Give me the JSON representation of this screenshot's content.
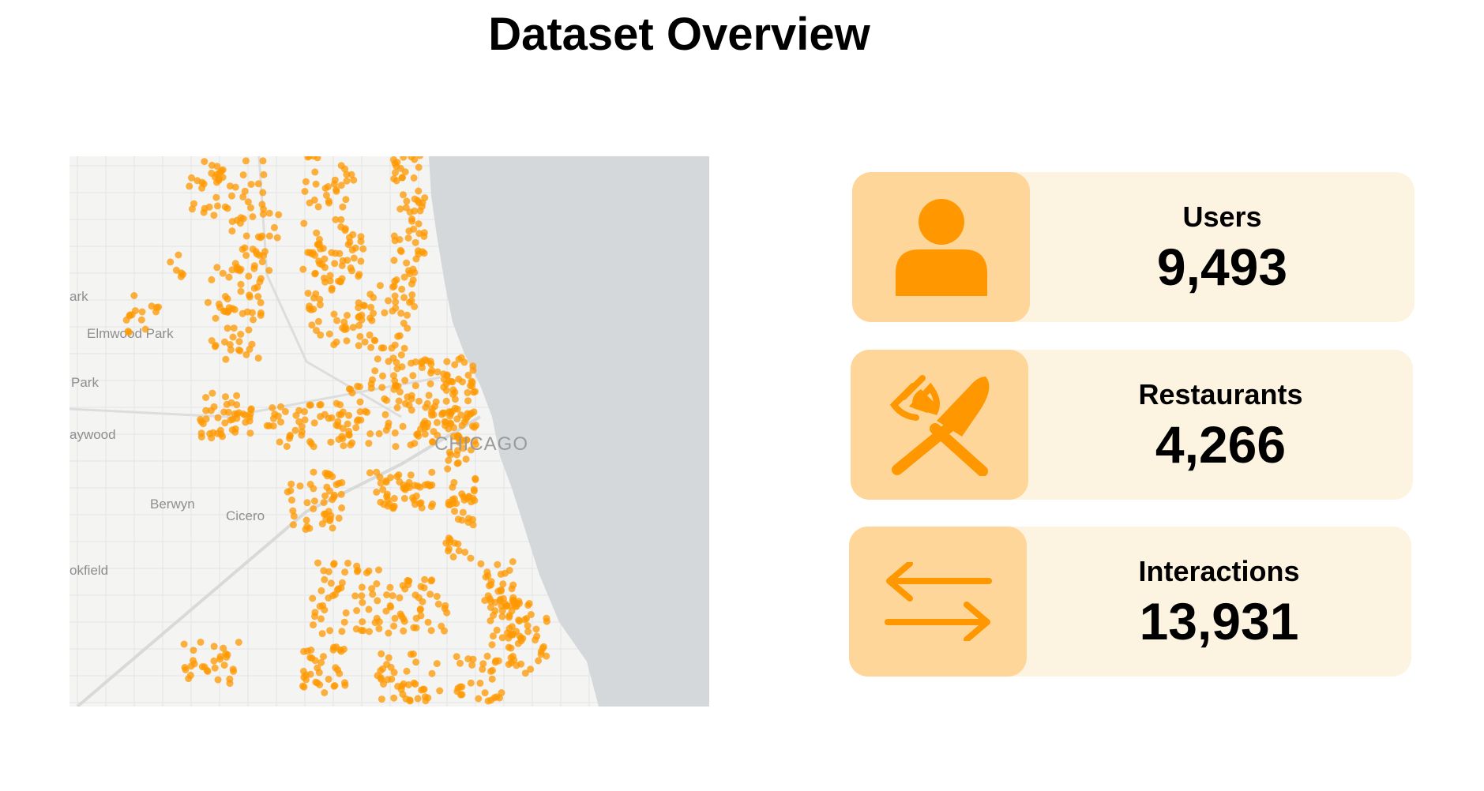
{
  "title": "Dataset Overview",
  "map": {
    "place_labels": [
      "ark",
      "Elmwood Park",
      "Park",
      "aywood",
      "Berwyn",
      "Cicero",
      "okfield",
      "CHICAGO"
    ],
    "land_color": "#f4f4f3",
    "water_color": "#d4d8da",
    "point_color": "#ff9800"
  },
  "stats": [
    {
      "label": "Users",
      "value": "9,493",
      "icon": "user-icon"
    },
    {
      "label": "Restaurants",
      "value": "4,266",
      "icon": "fork-knife-icon"
    },
    {
      "label": "Interactions",
      "value": "13,931",
      "icon": "swap-arrows-icon"
    }
  ],
  "colors": {
    "card_bg": "#fdf3e1",
    "icon_bg": "#ffd699",
    "icon_fg": "#ff9800"
  }
}
